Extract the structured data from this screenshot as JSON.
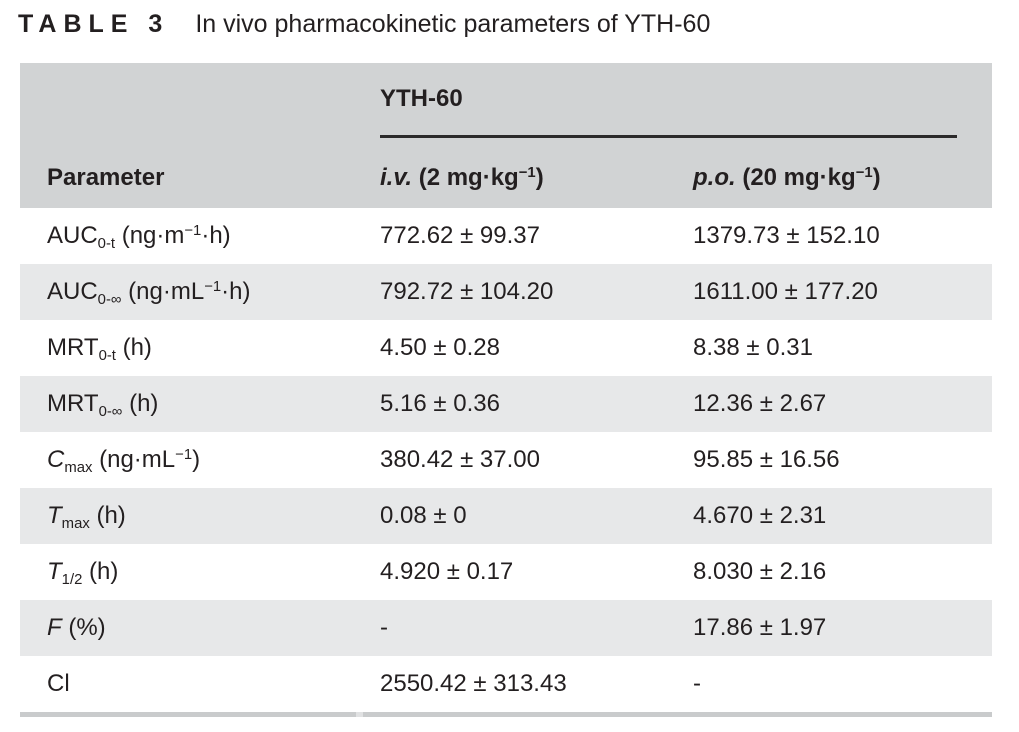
{
  "colors": {
    "text": "#231f20",
    "header_bg": "#d1d3d4",
    "row_alt_bg": "#e7e8e9",
    "rule": "#2b2a2a",
    "bottom_bar": "#c9cbcc"
  },
  "title": {
    "label": "TABLE 3",
    "text": "In vivo pharmacokinetic parameters of YTH-60"
  },
  "table": {
    "group_header": "YTH-60",
    "columns": {
      "parameter": "Parameter",
      "iv": "*i.v.* (2 mg·kg^−1^)",
      "po": "*p.o.* (20 mg·kg^−1^)"
    },
    "rows": [
      {
        "param": "AUC~0-t~ (ng·m^−1^·h)",
        "iv": "772.62 ± 99.37",
        "po": "1379.73 ± 152.10"
      },
      {
        "param": "AUC~0-∞~ (ng·mL^−1^·h)",
        "iv": "792.72 ± 104.20",
        "po": "1611.00 ± 177.20"
      },
      {
        "param": "MRT~0-t~ (h)",
        "iv": "4.50 ± 0.28",
        "po": "8.38 ± 0.31"
      },
      {
        "param": "MRT~0-∞~ (h)",
        "iv": "5.16 ± 0.36",
        "po": "12.36 ± 2.67"
      },
      {
        "param": "*C*~max~ (ng·mL^−1^)",
        "iv": "380.42 ± 37.00",
        "po": "95.85 ± 16.56"
      },
      {
        "param": "*T*~max~ (h)",
        "iv": "0.08 ± 0",
        "po": "4.670 ± 2.31"
      },
      {
        "param": "*T*~1/2~ (h)",
        "iv": "4.920 ± 0.17",
        "po": "8.030 ± 2.16"
      },
      {
        "param": "*F* (%)",
        "iv": "-",
        "po": "17.86 ± 1.97"
      },
      {
        "param": "Cl",
        "iv": "2550.42 ± 313.43",
        "po": "-"
      }
    ]
  }
}
